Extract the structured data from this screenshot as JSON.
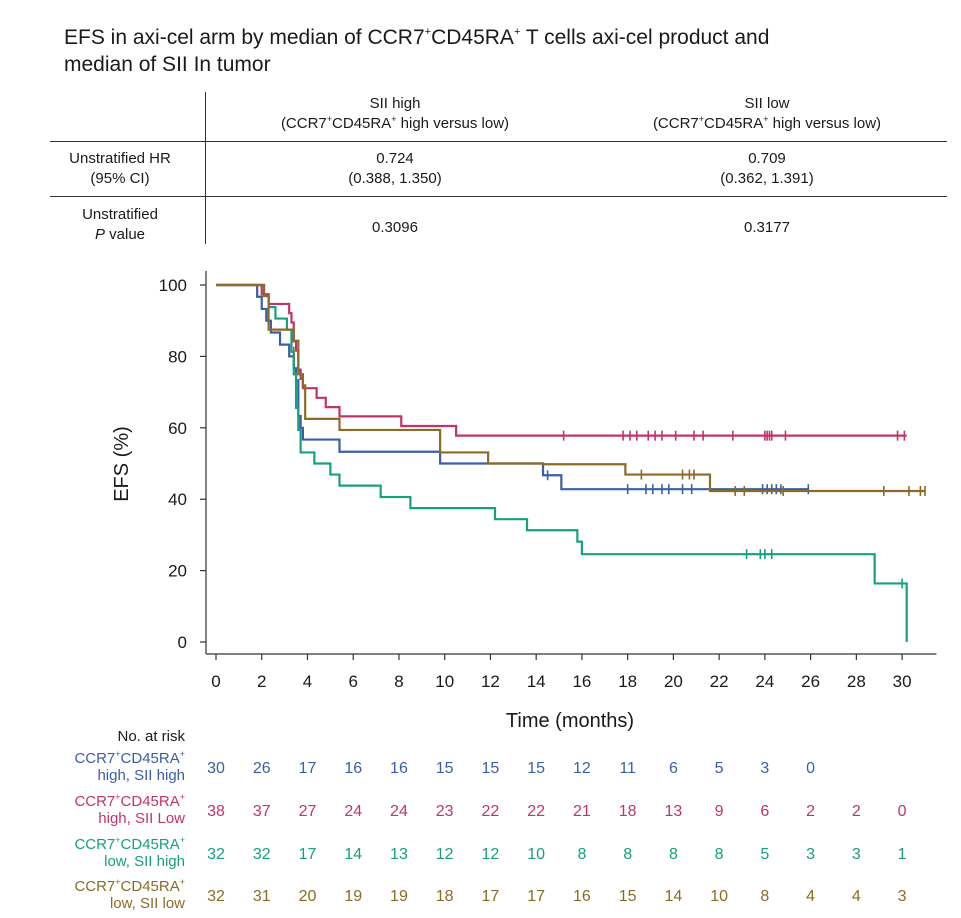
{
  "title": {
    "line1_a": "EFS in axi-cel arm by median of CCR7",
    "line1_sup1": "+",
    "line1_b": "CD45RA",
    "line1_sup2": "+",
    "line1_c": " T cells axi-cel product and",
    "line2": "median of SII In tumor"
  },
  "stats_table": {
    "col1": {
      "name": "SII high",
      "sub_a": "(CCR7",
      "sub_sup1": "+",
      "sub_b": "CD45RA",
      "sub_sup2": "+",
      "sub_c": " high versus low)"
    },
    "col2": {
      "name": "SII low",
      "sub_a": "(CCR7",
      "sub_sup1": "+",
      "sub_b": "CD45RA",
      "sub_sup2": "+",
      "sub_c": " high versus low)"
    },
    "row_hr": {
      "label1": "Unstratified HR",
      "label2": "(95% CI)",
      "col1_val": "0.724",
      "col1_ci": "(0.388, 1.350)",
      "col2_val": "0.709",
      "col2_ci": "(0.362, 1.391)"
    },
    "row_p": {
      "label1": "Unstratified",
      "label2_italic": "P",
      "label2_rest": " value",
      "col1_val": "0.3096",
      "col2_val": "0.3177"
    }
  },
  "chart_data": {
    "type": "line",
    "subtype": "kaplan-meier",
    "xlabel": "Time (months)",
    "ylabel": "EFS (%)",
    "xlim": [
      0,
      31.5
    ],
    "ylim": [
      0,
      100
    ],
    "xticks": [
      0,
      2,
      4,
      6,
      8,
      10,
      12,
      14,
      16,
      18,
      20,
      22,
      24,
      26,
      28,
      30
    ],
    "yticks": [
      0,
      20,
      40,
      60,
      80,
      100
    ],
    "series": [
      {
        "name": "CCR7+CD45RA+ high, SII high",
        "color": "#3b5ea8",
        "steps": [
          [
            0,
            100
          ],
          [
            1.6,
            100
          ],
          [
            1.8,
            96.7
          ],
          [
            2.0,
            93.3
          ],
          [
            2.2,
            90.0
          ],
          [
            2.4,
            86.7
          ],
          [
            2.8,
            83.3
          ],
          [
            3.2,
            80.0
          ],
          [
            3.4,
            76.7
          ],
          [
            3.5,
            73.3
          ],
          [
            3.6,
            63.3
          ],
          [
            3.7,
            60.0
          ],
          [
            3.8,
            56.7
          ],
          [
            5.4,
            53.3
          ],
          [
            9.8,
            50.0
          ],
          [
            14.3,
            46.7
          ],
          [
            15.1,
            42.8
          ],
          [
            25.9,
            42.8
          ]
        ],
        "censors": [
          [
            3.5,
            66.7
          ],
          [
            14.5,
            46.7
          ],
          [
            18.0,
            42.8
          ],
          [
            18.8,
            42.8
          ],
          [
            19.1,
            42.8
          ],
          [
            19.5,
            42.8
          ],
          [
            19.8,
            42.8
          ],
          [
            20.4,
            42.8
          ],
          [
            20.8,
            42.8
          ],
          [
            23.9,
            42.8
          ],
          [
            24.1,
            42.8
          ],
          [
            24.3,
            42.8
          ],
          [
            24.5,
            42.8
          ],
          [
            24.7,
            42.8
          ],
          [
            25.9,
            42.8
          ]
        ]
      },
      {
        "name": "CCR7+CD45RA+ high, SII Low",
        "color": "#c2336b",
        "steps": [
          [
            0,
            100
          ],
          [
            1.9,
            100
          ],
          [
            2.0,
            97.4
          ],
          [
            2.3,
            94.7
          ],
          [
            3.2,
            92.1
          ],
          [
            3.3,
            89.5
          ],
          [
            3.4,
            84.2
          ],
          [
            3.5,
            81.6
          ],
          [
            3.6,
            76.3
          ],
          [
            3.7,
            73.7
          ],
          [
            3.8,
            71.1
          ],
          [
            4.4,
            68.4
          ],
          [
            4.8,
            65.8
          ],
          [
            5.4,
            63.2
          ],
          [
            8.1,
            60.5
          ],
          [
            10.5,
            57.8
          ],
          [
            30.2,
            57.8
          ]
        ],
        "censors": [
          [
            15.2,
            57.8
          ],
          [
            17.8,
            57.8
          ],
          [
            18.1,
            57.8
          ],
          [
            18.4,
            57.8
          ],
          [
            18.9,
            57.8
          ],
          [
            19.2,
            57.8
          ],
          [
            19.5,
            57.8
          ],
          [
            20.1,
            57.8
          ],
          [
            20.9,
            57.8
          ],
          [
            21.3,
            57.8
          ],
          [
            22.6,
            57.8
          ],
          [
            24.0,
            57.8
          ],
          [
            24.1,
            57.8
          ],
          [
            24.2,
            57.8
          ],
          [
            24.3,
            57.8
          ],
          [
            24.9,
            57.8
          ],
          [
            29.8,
            57.8
          ],
          [
            30.1,
            57.8
          ]
        ]
      },
      {
        "name": "CCR7+CD45RA+ low, SII high",
        "color": "#17a07d",
        "steps": [
          [
            0,
            100
          ],
          [
            1.9,
            100
          ],
          [
            2.1,
            96.9
          ],
          [
            2.3,
            93.8
          ],
          [
            2.6,
            90.6
          ],
          [
            3.1,
            87.5
          ],
          [
            3.3,
            81.3
          ],
          [
            3.4,
            75.0
          ],
          [
            3.5,
            65.6
          ],
          [
            3.6,
            59.4
          ],
          [
            3.7,
            53.1
          ],
          [
            4.3,
            50.0
          ],
          [
            5.0,
            46.9
          ],
          [
            5.4,
            43.8
          ],
          [
            7.2,
            40.6
          ],
          [
            8.5,
            37.5
          ],
          [
            12.2,
            34.4
          ],
          [
            13.6,
            31.3
          ],
          [
            15.8,
            28.1
          ],
          [
            16.0,
            24.6
          ],
          [
            28.7,
            24.6
          ],
          [
            28.8,
            16.4
          ],
          [
            30.2,
            16.4
          ],
          [
            30.2,
            0
          ]
        ],
        "censors": [
          [
            23.2,
            24.6
          ],
          [
            23.8,
            24.6
          ],
          [
            24.0,
            24.6
          ],
          [
            24.3,
            24.6
          ],
          [
            30.0,
            16.4
          ]
        ]
      },
      {
        "name": "CCR7+CD45RA+ low, SII low",
        "color": "#8b6b26",
        "steps": [
          [
            0,
            100
          ],
          [
            1.9,
            100
          ],
          [
            2.1,
            96.9
          ],
          [
            2.3,
            87.5
          ],
          [
            3.4,
            84.4
          ],
          [
            3.6,
            75.0
          ],
          [
            3.8,
            71.9
          ],
          [
            3.9,
            62.5
          ],
          [
            5.4,
            59.4
          ],
          [
            9.8,
            53.1
          ],
          [
            11.9,
            50.0
          ],
          [
            14.3,
            49.8
          ],
          [
            17.9,
            46.9
          ],
          [
            21.6,
            42.3
          ],
          [
            31.0,
            42.3
          ]
        ],
        "censors": [
          [
            3.4,
            81.3
          ],
          [
            18.6,
            46.9
          ],
          [
            20.4,
            46.9
          ],
          [
            20.7,
            46.9
          ],
          [
            20.9,
            46.9
          ],
          [
            22.7,
            42.3
          ],
          [
            23.1,
            42.3
          ],
          [
            24.8,
            42.3
          ],
          [
            29.2,
            42.3
          ],
          [
            30.3,
            42.3
          ],
          [
            30.8,
            42.3
          ],
          [
            31.0,
            42.3
          ]
        ]
      }
    ]
  },
  "risk_table": {
    "title": "No. at risk",
    "rows": [
      {
        "label_a": "CCR7",
        "label_sup1": "+",
        "label_b": "CD45RA",
        "label_sup2": "+",
        "label_line2": "high, SII high",
        "color": "#3b5ea8",
        "values": [
          "30",
          "26",
          "17",
          "16",
          "16",
          "15",
          "15",
          "15",
          "12",
          "11",
          "6",
          "5",
          "3",
          "0"
        ]
      },
      {
        "label_a": "CCR7",
        "label_sup1": "+",
        "label_b": "CD45RA",
        "label_sup2": "+",
        "label_line2": "high, SII Low",
        "color": "#c2336b",
        "values": [
          "38",
          "37",
          "27",
          "24",
          "24",
          "23",
          "22",
          "22",
          "21",
          "18",
          "13",
          "9",
          "6",
          "2",
          "2",
          "0"
        ]
      },
      {
        "label_a": "CCR7",
        "label_sup1": "+",
        "label_b": "CD45RA",
        "label_sup2": "+",
        "label_line2": "low, SII high",
        "color": "#17a07d",
        "values": [
          "32",
          "32",
          "17",
          "14",
          "13",
          "12",
          "12",
          "10",
          "8",
          "8",
          "8",
          "8",
          "5",
          "3",
          "3",
          "1"
        ]
      },
      {
        "label_a": "CCR7",
        "label_sup1": "+",
        "label_b": "CD45RA",
        "label_sup2": "+",
        "label_line2": "low, SII low",
        "color": "#8b6b26",
        "values": [
          "32",
          "31",
          "20",
          "19",
          "19",
          "18",
          "17",
          "17",
          "16",
          "15",
          "14",
          "10",
          "8",
          "4",
          "4",
          "3"
        ]
      }
    ]
  }
}
